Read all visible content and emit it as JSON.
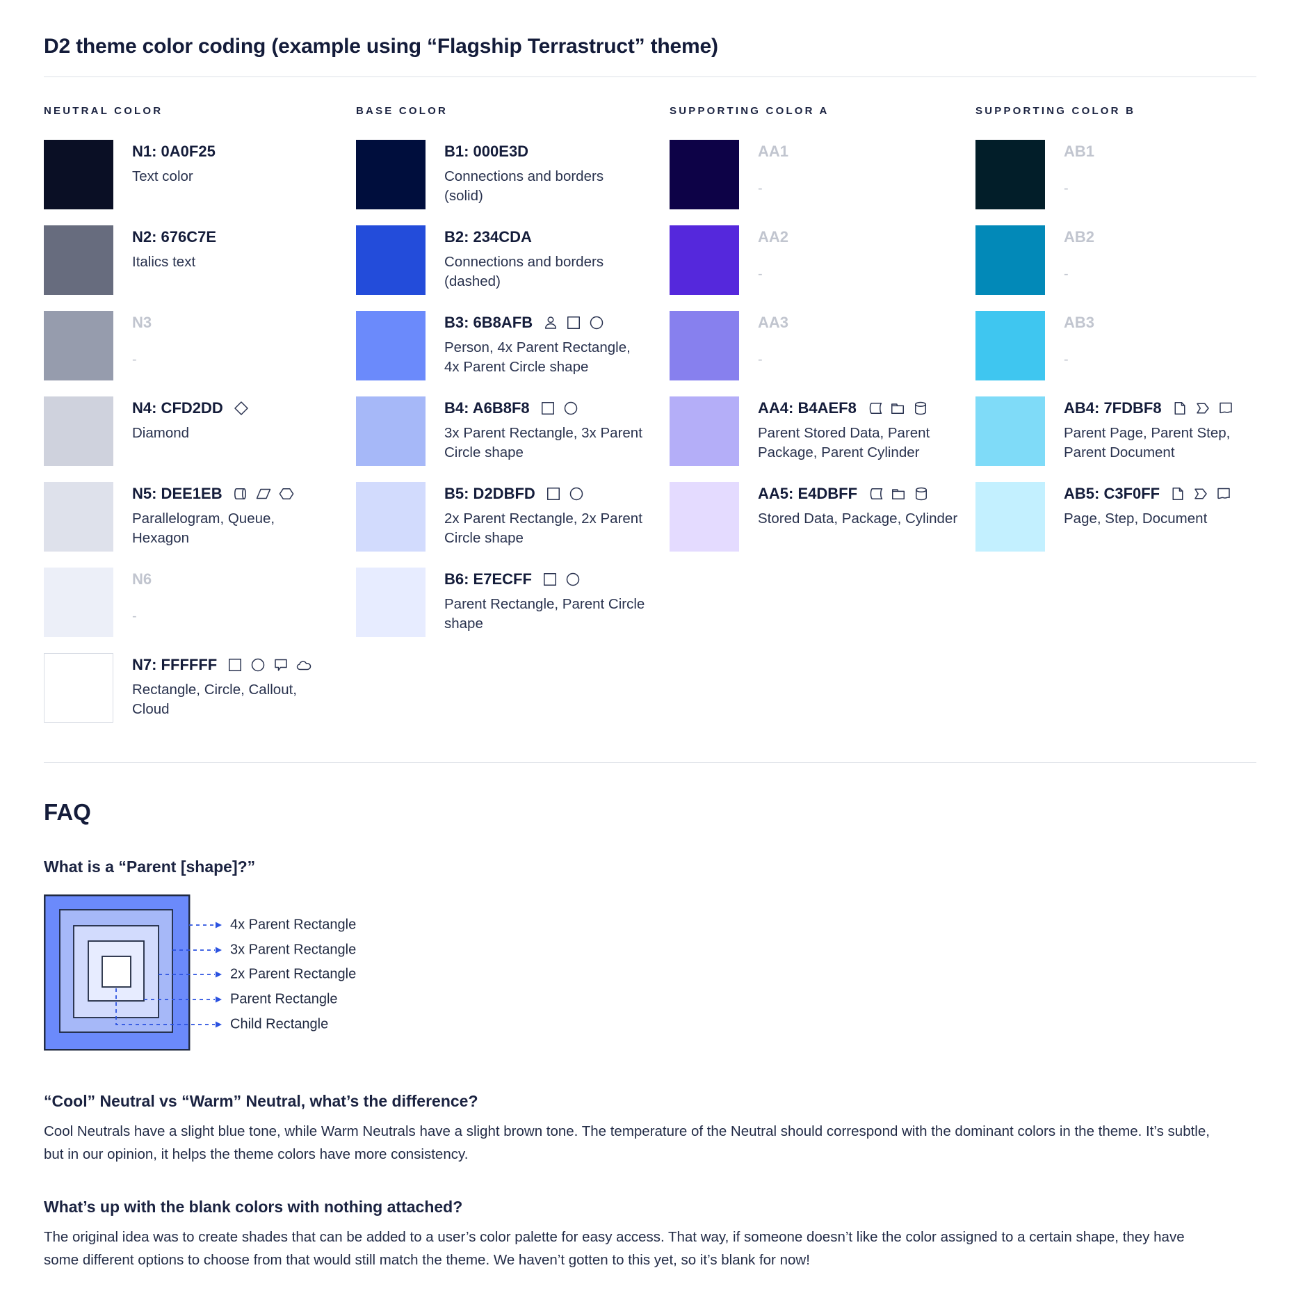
{
  "page": {
    "title": "D2 theme color coding (example using “Flagship Terrastruct” theme)"
  },
  "palette": {
    "columns": [
      {
        "header": "NEUTRAL COLOR",
        "entries": [
          {
            "name": "N1: 0A0F25",
            "swatch": "#0A0F25",
            "desc": "Text color",
            "icons": []
          },
          {
            "name": "N2: 676C7E",
            "swatch": "#676C7E",
            "desc": "Italics text",
            "icons": []
          },
          {
            "name": "N3",
            "swatch": "#969CAD",
            "desc": "-",
            "blank": true,
            "icons": []
          },
          {
            "name": "N4: CFD2DD",
            "swatch": "#CFD2DD",
            "desc": "Diamond",
            "icons": [
              "diamond"
            ]
          },
          {
            "name": "N5: DEE1EB",
            "swatch": "#DEE1EB",
            "desc": "Parallelogram, Queue, Hexagon",
            "icons": [
              "queue",
              "parallelogram",
              "hexagon"
            ]
          },
          {
            "name": "N6",
            "swatch": "#ECEFF8",
            "desc": "-",
            "blank": true,
            "icons": []
          },
          {
            "name": "N7: FFFFFF",
            "swatch": "#FFFFFF",
            "bordered": true,
            "desc": "Rectangle, Circle, Callout, Cloud",
            "icons": [
              "rectangle",
              "circle",
              "callout",
              "cloud"
            ]
          }
        ]
      },
      {
        "header": "BASE COLOR",
        "entries": [
          {
            "name": "B1: 000E3D",
            "swatch": "#000E3D",
            "desc": "Connections and borders (solid)",
            "icons": []
          },
          {
            "name": "B2: 234CDA",
            "swatch": "#234CDA",
            "desc": "Connections and borders (dashed)",
            "icons": []
          },
          {
            "name": "B3: 6B8AFB",
            "swatch": "#6B8AFB",
            "desc": "Person, 4x Parent Rectangle, 4x Parent Circle shape",
            "icons": [
              "person",
              "rectangle",
              "circle"
            ]
          },
          {
            "name": "B4: A6B8F8",
            "swatch": "#A6B8F8",
            "desc": "3x Parent Rectangle, 3x Parent Circle shape",
            "icons": [
              "rectangle",
              "circle"
            ]
          },
          {
            "name": "B5: D2DBFD",
            "swatch": "#D2DBFD",
            "desc": "2x Parent Rectangle, 2x Parent Circle shape",
            "icons": [
              "rectangle",
              "circle"
            ]
          },
          {
            "name": "B6: E7ECFF",
            "swatch": "#E7ECFF",
            "desc": "Parent Rectangle, Parent Circle shape",
            "icons": [
              "rectangle",
              "circle"
            ]
          }
        ]
      },
      {
        "header": "SUPPORTING COLOR A",
        "entries": [
          {
            "name": "AA1",
            "swatch": "#0D0247",
            "desc": "-",
            "blank": true,
            "icons": []
          },
          {
            "name": "AA2",
            "swatch": "#5528DC",
            "desc": "-",
            "blank": true,
            "icons": []
          },
          {
            "name": "AA3",
            "swatch": "#8780EE",
            "desc": "-",
            "blank": true,
            "icons": []
          },
          {
            "name": "AA4: B4AEF8",
            "swatch": "#B4AEF8",
            "desc": "Parent Stored Data, Parent Package, Parent Cylinder",
            "icons": [
              "stored-data",
              "package",
              "cylinder"
            ]
          },
          {
            "name": "AA5: E4DBFF",
            "swatch": "#E4DBFF",
            "desc": "Stored Data, Package, Cylinder",
            "icons": [
              "stored-data",
              "package",
              "cylinder"
            ]
          }
        ]
      },
      {
        "header": "SUPPORTING COLOR B",
        "entries": [
          {
            "name": "AB1",
            "swatch": "#021E29",
            "desc": "-",
            "blank": true,
            "icons": []
          },
          {
            "name": "AB2",
            "swatch": "#0289B8",
            "desc": "-",
            "blank": true,
            "icons": []
          },
          {
            "name": "AB3",
            "swatch": "#3FC6F0",
            "desc": "-",
            "blank": true,
            "icons": []
          },
          {
            "name": "AB4: 7FDBF8",
            "swatch": "#7FDBF8",
            "desc": "Parent Page, Parent Step, Parent Document",
            "icons": [
              "page",
              "step",
              "document"
            ]
          },
          {
            "name": "AB5: C3F0FF",
            "swatch": "#C3F0FF",
            "desc": "Page, Step, Document",
            "icons": [
              "page",
              "step",
              "document"
            ]
          }
        ]
      }
    ]
  },
  "faq": {
    "heading": "FAQ",
    "q1": {
      "question": "What is a “Parent [shape]?”",
      "diagram": {
        "labels": [
          "4x Parent Rectangle",
          "3x Parent Rectangle",
          "2x Parent Rectangle",
          "Parent Rectangle",
          "Child Rectangle"
        ],
        "layer_colors": [
          "#6B8AFB",
          "#A6B8F8",
          "#D2DBFD",
          "#E7ECFF",
          "#FFFFFF"
        ],
        "line_color": "#2B52E0",
        "border_color": "#1F2940"
      }
    },
    "q2": {
      "question": "“Cool” Neutral vs “Warm” Neutral, what’s the difference?",
      "answer": "Cool Neutrals have a slight blue tone, while Warm Neutrals have a slight brown tone. The temperature of the Neutral should correspond with the dominant colors in the theme. It’s subtle, but in our opinion, it helps the theme colors have more consistency."
    },
    "q3": {
      "question": "What’s up with the blank colors with nothing attached?",
      "answer": "The original idea was to create shades that can be added to a user’s color palette for easy access. That way, if someone doesn’t like the color assigned to a certain shape, they have some different options to choose from that would still match the theme. We haven’t gotten to this yet, so it’s blank for now!"
    }
  }
}
